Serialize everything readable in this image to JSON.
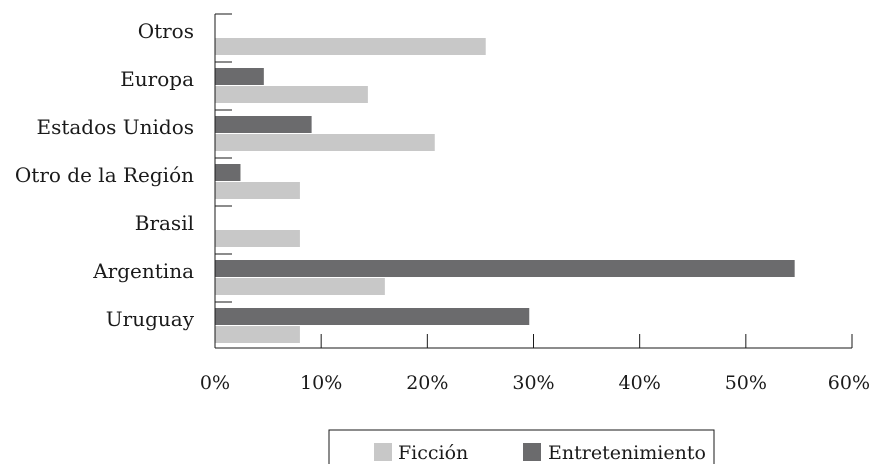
{
  "chart_data": {
    "type": "bar",
    "orientation": "horizontal",
    "categories": [
      "Otros",
      "Europa",
      "Estados Unidos",
      "Otro de la Región",
      "Brasil",
      "Argentina",
      "Uruguay"
    ],
    "series": [
      {
        "name": "Ficción",
        "color": "#c8c8c8",
        "values": [
          25.5,
          14.4,
          20.7,
          8.0,
          8.0,
          16.0,
          8.0
        ]
      },
      {
        "name": "Entretenimiento",
        "color": "#6b6b6d",
        "values": [
          0,
          4.6,
          9.1,
          2.4,
          0,
          54.6,
          29.6
        ]
      }
    ],
    "x_ticks": [
      "0%",
      "10%",
      "20%",
      "30%",
      "40%",
      "50%",
      "60%"
    ],
    "xlim": [
      0,
      60
    ],
    "title": "",
    "xlabel": "",
    "ylabel": "",
    "grid": false,
    "legend_position": "bottom"
  }
}
